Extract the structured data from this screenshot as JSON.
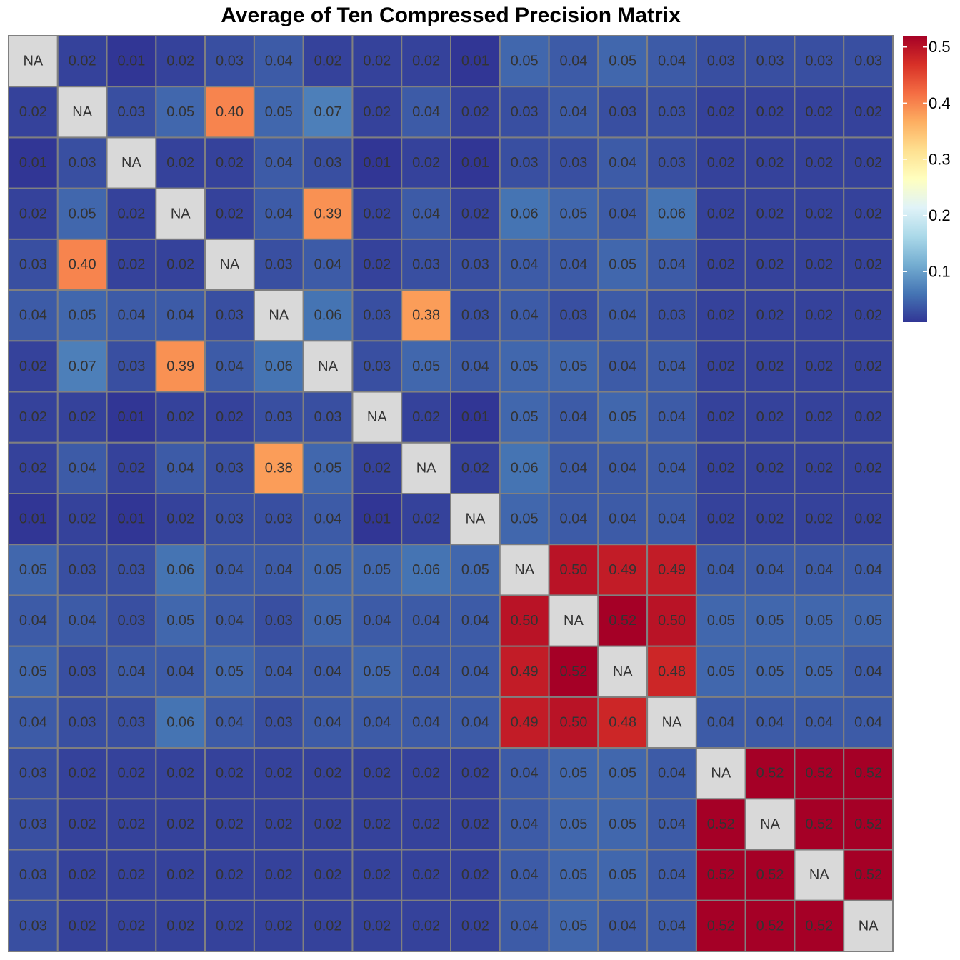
{
  "chart_data": {
    "type": "heatmap",
    "title": "Average of Ten Compressed Precision Matrix",
    "na_label": "NA",
    "rows": 18,
    "cols": 18,
    "values": [
      [
        null,
        0.02,
        0.01,
        0.02,
        0.03,
        0.04,
        0.02,
        0.02,
        0.02,
        0.01,
        0.05,
        0.04,
        0.05,
        0.04,
        0.03,
        0.03,
        0.03,
        0.03
      ],
      [
        0.02,
        null,
        0.03,
        0.05,
        0.4,
        0.05,
        0.07,
        0.02,
        0.04,
        0.02,
        0.03,
        0.04,
        0.03,
        0.03,
        0.02,
        0.02,
        0.02,
        0.02
      ],
      [
        0.01,
        0.03,
        null,
        0.02,
        0.02,
        0.04,
        0.03,
        0.01,
        0.02,
        0.01,
        0.03,
        0.03,
        0.04,
        0.03,
        0.02,
        0.02,
        0.02,
        0.02
      ],
      [
        0.02,
        0.05,
        0.02,
        null,
        0.02,
        0.04,
        0.39,
        0.02,
        0.04,
        0.02,
        0.06,
        0.05,
        0.04,
        0.06,
        0.02,
        0.02,
        0.02,
        0.02
      ],
      [
        0.03,
        0.4,
        0.02,
        0.02,
        null,
        0.03,
        0.04,
        0.02,
        0.03,
        0.03,
        0.04,
        0.04,
        0.05,
        0.04,
        0.02,
        0.02,
        0.02,
        0.02
      ],
      [
        0.04,
        0.05,
        0.04,
        0.04,
        0.03,
        null,
        0.06,
        0.03,
        0.38,
        0.03,
        0.04,
        0.03,
        0.04,
        0.03,
        0.02,
        0.02,
        0.02,
        0.02
      ],
      [
        0.02,
        0.07,
        0.03,
        0.39,
        0.04,
        0.06,
        null,
        0.03,
        0.05,
        0.04,
        0.05,
        0.05,
        0.04,
        0.04,
        0.02,
        0.02,
        0.02,
        0.02
      ],
      [
        0.02,
        0.02,
        0.01,
        0.02,
        0.02,
        0.03,
        0.03,
        null,
        0.02,
        0.01,
        0.05,
        0.04,
        0.05,
        0.04,
        0.02,
        0.02,
        0.02,
        0.02
      ],
      [
        0.02,
        0.04,
        0.02,
        0.04,
        0.03,
        0.38,
        0.05,
        0.02,
        null,
        0.02,
        0.06,
        0.04,
        0.04,
        0.04,
        0.02,
        0.02,
        0.02,
        0.02
      ],
      [
        0.01,
        0.02,
        0.01,
        0.02,
        0.03,
        0.03,
        0.04,
        0.01,
        0.02,
        null,
        0.05,
        0.04,
        0.04,
        0.04,
        0.02,
        0.02,
        0.02,
        0.02
      ],
      [
        0.05,
        0.03,
        0.03,
        0.06,
        0.04,
        0.04,
        0.05,
        0.05,
        0.06,
        0.05,
        null,
        0.5,
        0.49,
        0.49,
        0.04,
        0.04,
        0.04,
        0.04
      ],
      [
        0.04,
        0.04,
        0.03,
        0.05,
        0.04,
        0.03,
        0.05,
        0.04,
        0.04,
        0.04,
        0.5,
        null,
        0.52,
        0.5,
        0.05,
        0.05,
        0.05,
        0.05
      ],
      [
        0.05,
        0.03,
        0.04,
        0.04,
        0.05,
        0.04,
        0.04,
        0.05,
        0.04,
        0.04,
        0.49,
        0.52,
        null,
        0.48,
        0.05,
        0.05,
        0.05,
        0.04
      ],
      [
        0.04,
        0.03,
        0.03,
        0.06,
        0.04,
        0.03,
        0.04,
        0.04,
        0.04,
        0.04,
        0.49,
        0.5,
        0.48,
        null,
        0.04,
        0.04,
        0.04,
        0.04
      ],
      [
        0.03,
        0.02,
        0.02,
        0.02,
        0.02,
        0.02,
        0.02,
        0.02,
        0.02,
        0.02,
        0.04,
        0.05,
        0.05,
        0.04,
        null,
        0.52,
        0.52,
        0.52
      ],
      [
        0.03,
        0.02,
        0.02,
        0.02,
        0.02,
        0.02,
        0.02,
        0.02,
        0.02,
        0.02,
        0.04,
        0.05,
        0.05,
        0.04,
        0.52,
        null,
        0.52,
        0.52
      ],
      [
        0.03,
        0.02,
        0.02,
        0.02,
        0.02,
        0.02,
        0.02,
        0.02,
        0.02,
        0.02,
        0.04,
        0.05,
        0.05,
        0.04,
        0.52,
        0.52,
        null,
        0.52
      ],
      [
        0.03,
        0.02,
        0.02,
        0.02,
        0.02,
        0.02,
        0.02,
        0.02,
        0.02,
        0.02,
        0.04,
        0.05,
        0.04,
        0.04,
        0.52,
        0.52,
        0.52,
        null
      ]
    ],
    "value_format_decimals": 2,
    "color_range": [
      0.01,
      0.52
    ],
    "colorscale": [
      "#313695",
      "#4575b4",
      "#74add1",
      "#abd9e9",
      "#e0f3f8",
      "#ffffbf",
      "#fee090",
      "#fdae61",
      "#f46d43",
      "#d73027",
      "#a50026"
    ],
    "na_color": "#d9d9d9",
    "cell_border_color": "#808080",
    "legend": {
      "placement": "right",
      "tick_labels": [
        "0.1",
        "0.2",
        "0.3",
        "0.4",
        "0.5"
      ],
      "tick_values": [
        0.1,
        0.2,
        0.3,
        0.4,
        0.5
      ]
    }
  }
}
